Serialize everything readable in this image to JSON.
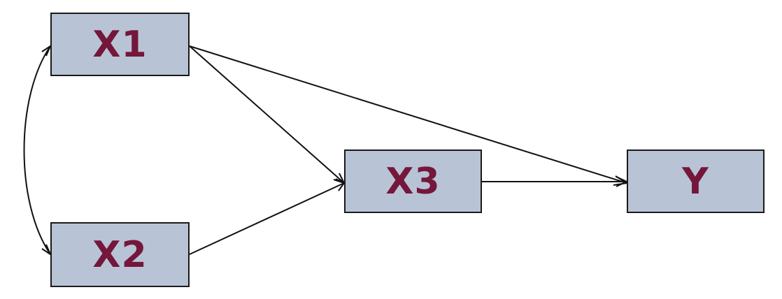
{
  "diagram": {
    "nodes": [
      {
        "id": "x1",
        "label": "X1"
      },
      {
        "id": "x2",
        "label": "X2"
      },
      {
        "id": "x3",
        "label": "X3"
      },
      {
        "id": "y",
        "label": "Y"
      }
    ],
    "edges": [
      {
        "from": "x1",
        "to": "x3",
        "type": "directed"
      },
      {
        "from": "x2",
        "to": "x3",
        "type": "directed"
      },
      {
        "from": "x1",
        "to": "y",
        "type": "directed"
      },
      {
        "from": "x3",
        "to": "y",
        "type": "directed"
      },
      {
        "from": "x1",
        "to": "x2",
        "type": "bidirectional-curved"
      }
    ]
  },
  "colors": {
    "node_fill": "#b8c4d6",
    "label_text": "#74173a",
    "line": "#111111"
  }
}
